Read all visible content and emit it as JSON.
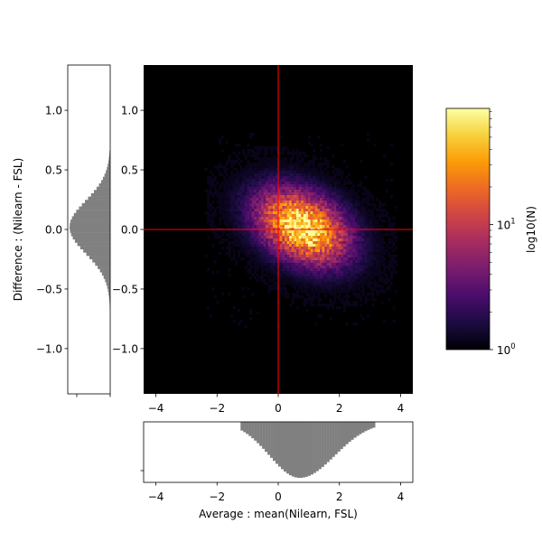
{
  "chart_data": [
    {
      "type": "heatmap",
      "panel": "main-hexbin",
      "xlabel": "Average :  mean(Nilearn, FSL)",
      "ylabel": "Difference : (Nilearn - FSL)",
      "xlim": [
        -4.4,
        4.4
      ],
      "ylim": [
        -1.38,
        1.38
      ],
      "xticks": [
        "−4",
        "−2",
        "0",
        "2",
        "4"
      ],
      "xtick_values": [
        -4,
        -2,
        0,
        2,
        4
      ],
      "yticks": [
        "−1.0",
        "−0.5",
        "0.0",
        "0.5",
        "1.0"
      ],
      "ytick_values": [
        -1.0,
        -0.5,
        0.0,
        0.5,
        1.0
      ],
      "density_center": {
        "x": 0.8,
        "y": 0.02
      },
      "density_spread": {
        "x": 1.05,
        "y": 0.22,
        "correlation": -0.35
      },
      "extent": {
        "x": [
          -2.4,
          3.9
        ],
        "y": [
          -0.82,
          0.82
        ]
      },
      "max_log_count": 1.92,
      "reference_lines": [
        {
          "orientation": "vertical",
          "value": 0,
          "color": "#ff0000"
        },
        {
          "orientation": "horizontal",
          "value": 0,
          "color": "#ff0000"
        }
      ],
      "background": "#000000"
    },
    {
      "type": "bar",
      "panel": "marginal-histogram-x",
      "orientation": "vertical",
      "xlim": [
        -4.4,
        4.4
      ],
      "xticks": [
        "−4",
        "−2",
        "0",
        "2",
        "4"
      ],
      "xtick_values": [
        -4,
        -2,
        0,
        2,
        4
      ],
      "peak_x": 0.7,
      "spread": 1.05,
      "extent": [
        -1.2,
        3.2
      ],
      "color": "#808080"
    },
    {
      "type": "bar",
      "panel": "marginal-histogram-y",
      "orientation": "horizontal",
      "ylim": [
        -1.38,
        1.38
      ],
      "yticks": [
        "−1.0",
        "−0.5",
        "0.0",
        "0.5",
        "1.0"
      ],
      "ytick_values": [
        -1.0,
        -0.5,
        0.0,
        0.5,
        1.0
      ],
      "peak_y": 0.02,
      "spread": 0.22,
      "extent": [
        -0.65,
        0.65
      ],
      "color": "#808080"
    },
    {
      "type": "colorbar",
      "label": "log10(N)",
      "scale": "log",
      "range": [
        1,
        85
      ],
      "tick_labels": [
        {
          "base": "10",
          "exp": "0",
          "value": 1
        },
        {
          "base": "10",
          "exp": "1",
          "value": 10
        }
      ],
      "colormap": "inferno",
      "colors": [
        "#000004",
        "#1b0c41",
        "#4a0c6b",
        "#781c6d",
        "#a52c60",
        "#cf4446",
        "#ed6925",
        "#fb9b06",
        "#f7d13d",
        "#fcffa4"
      ]
    }
  ]
}
